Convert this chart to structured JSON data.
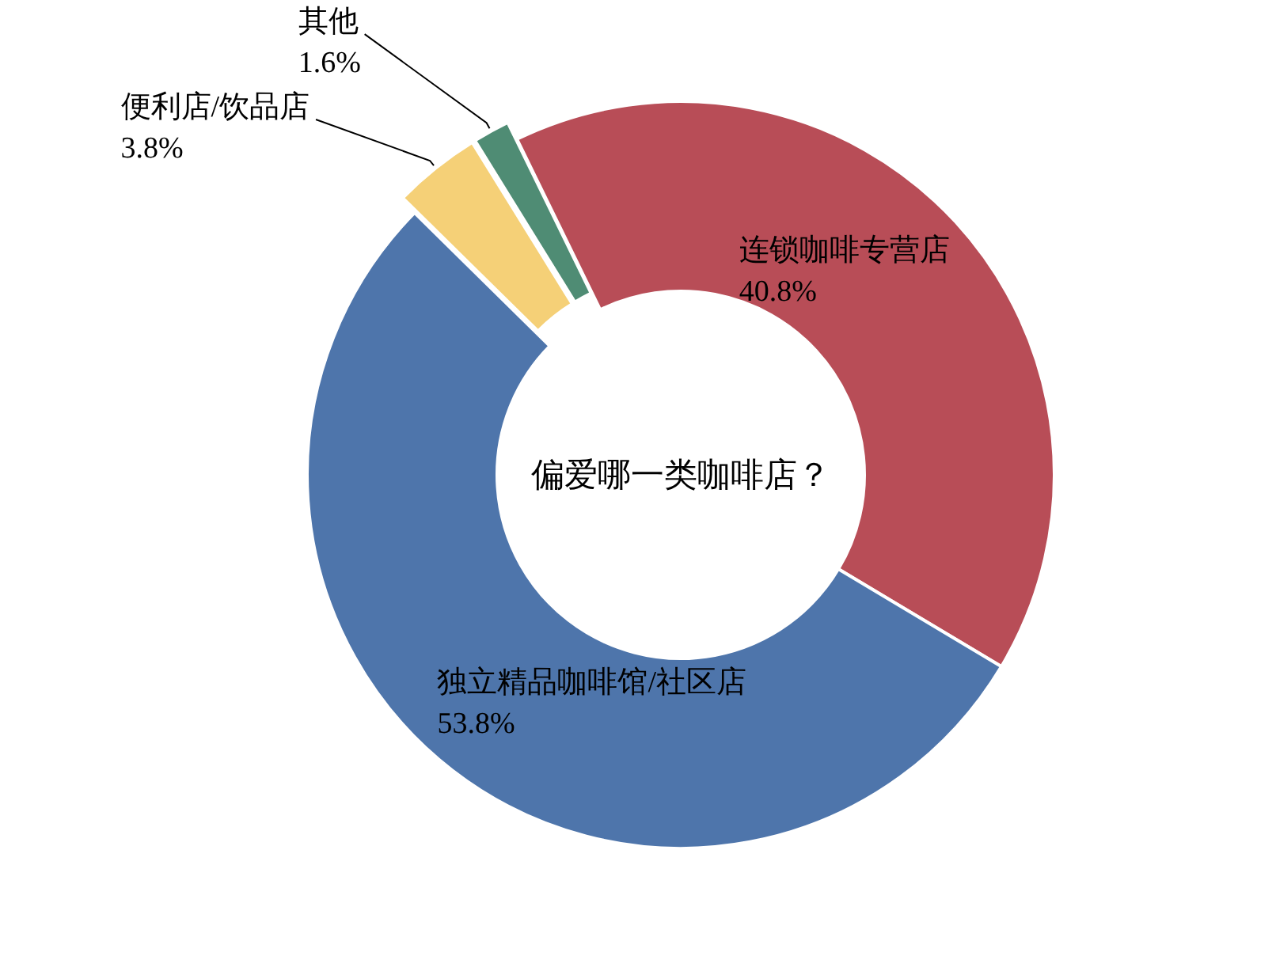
{
  "chart_data": {
    "type": "donut",
    "title": "偏爱哪一类咖啡店？",
    "categories": [
      "连锁咖啡专营店",
      "独立精品咖啡馆/社区店",
      "便利店/饮品店",
      "其他"
    ],
    "values": [
      40.8,
      53.8,
      3.8,
      1.6
    ],
    "value_labels": [
      "40.8%",
      "53.8%",
      "3.8%",
      "1.6%"
    ],
    "colors": [
      "#b84d57",
      "#4e75ab",
      "#f5d077",
      "#4f8c74"
    ]
  }
}
